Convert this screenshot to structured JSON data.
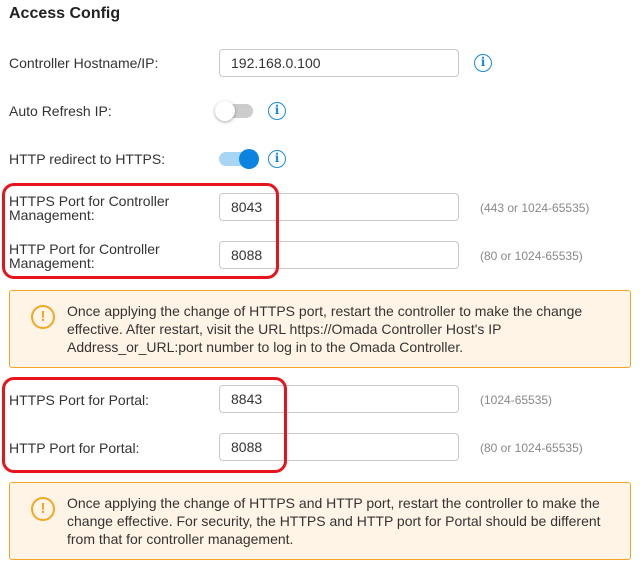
{
  "title": "Access Config",
  "fields": {
    "hostname": {
      "label": "Controller Hostname/IP:",
      "value": "192.168.0.100"
    },
    "auto_refresh": {
      "label": "Auto Refresh IP:",
      "enabled": false
    },
    "redirect": {
      "label": "HTTP redirect to HTTPS:",
      "enabled": true
    },
    "https_mgmt": {
      "label1": "HTTPS Port for Controller",
      "label2": "Management:",
      "value": "8043",
      "hint": "(443 or 1024-65535)"
    },
    "http_mgmt": {
      "label1": "HTTP Port for Controller",
      "label2": "Management:",
      "value": "8088",
      "hint": "(80 or 1024-65535)"
    },
    "https_portal": {
      "label": "HTTPS Port for Portal:",
      "value": "8843",
      "hint": "(1024-65535)"
    },
    "http_portal": {
      "label": "HTTP Port for Portal:",
      "value": "8088",
      "hint": "(80 or 1024-65535)"
    }
  },
  "alerts": [
    "Once applying the change of HTTPS port, restart the controller to make the change effective. After restart, visit the URL https://Omada Controller Host's IP Address_or_URL:port number to log in to the Omada Controller.",
    "Once applying the change of HTTPS and HTTP port, restart the controller to make the change effective. For security, the HTTPS and HTTP port for Portal should be different from that for controller management."
  ],
  "icons": {
    "info": "i",
    "warn": "!"
  },
  "colors": {
    "accent": "#1a8cdc",
    "warning": "#f5a623",
    "highlight": "#e8141c"
  }
}
